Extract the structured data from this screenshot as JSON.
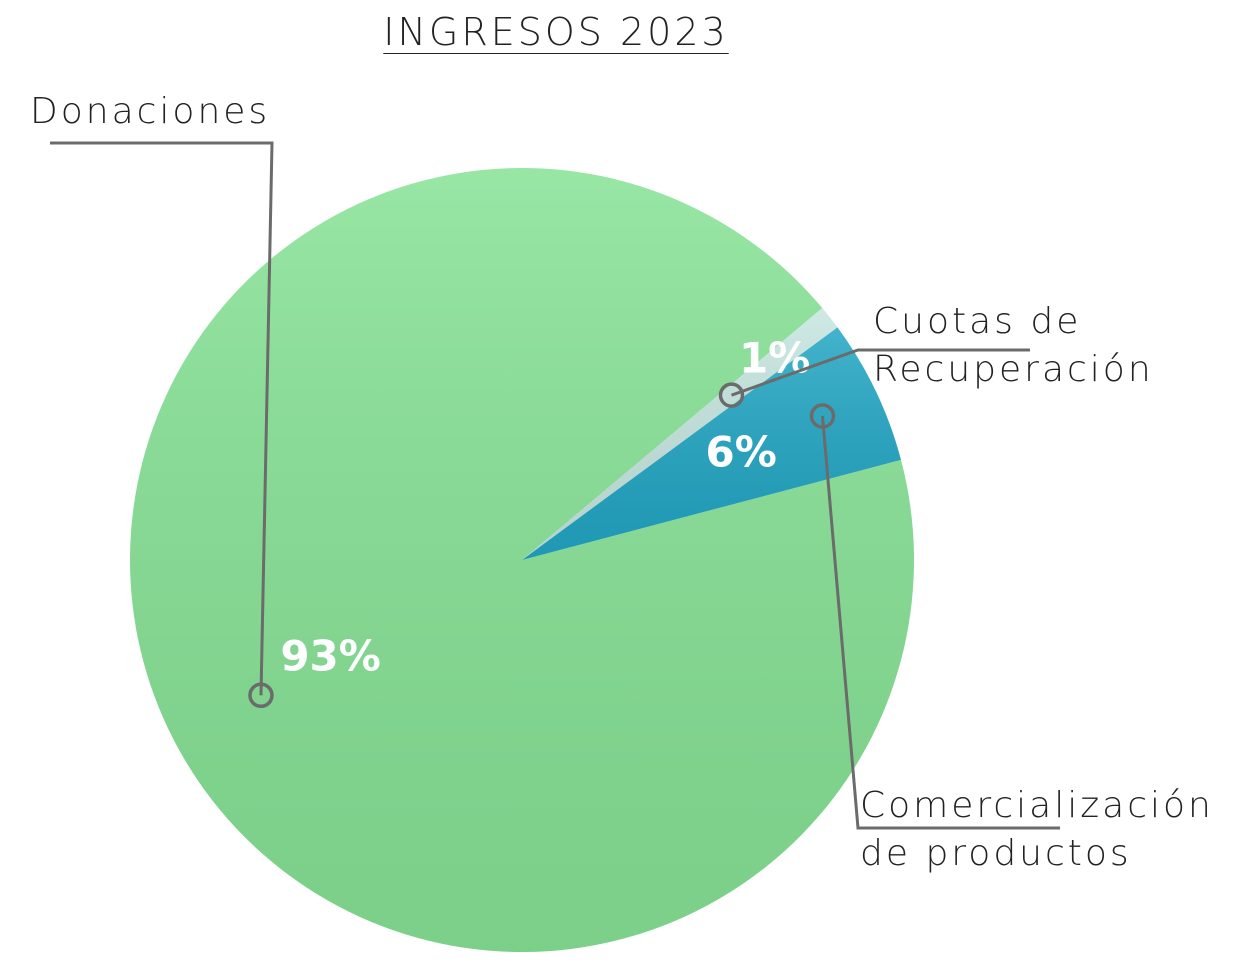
{
  "chart_data": {
    "type": "pie",
    "title": "INGRESOS 2023",
    "categories": [
      "Donaciones",
      "Cuotas de Recuperación",
      "Comercialización de productos"
    ],
    "values": [
      93,
      1,
      6
    ],
    "value_labels": [
      "93%",
      "1%",
      "6%"
    ],
    "colors": [
      "#86e295",
      "#c6e6e0",
      "#22a6c4"
    ]
  }
}
